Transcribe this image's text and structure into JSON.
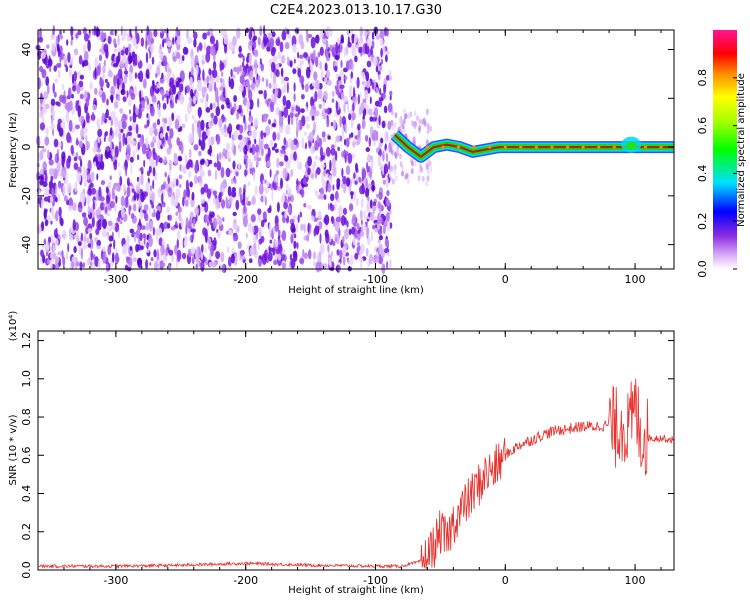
{
  "title": "C2E4.2023.013.10.17.G30",
  "chart_data": [
    {
      "type": "heatmap",
      "name": "spectrogram",
      "xlabel": "Height of straight line (km)",
      "ylabel": "Frequency (Hz)",
      "xlim": [
        -360,
        130
      ],
      "ylim": [
        -50,
        48
      ],
      "x_ticks": [
        -300,
        -200,
        -100,
        0,
        100
      ],
      "y_ticks": [
        -40,
        -20,
        0,
        20,
        40
      ],
      "signal_track": {
        "description_points_x": [
          -85,
          -75,
          -65,
          -55,
          -45,
          -35,
          -25,
          -15,
          -5,
          0,
          50,
          95,
          130
        ],
        "frequency_hz": [
          5,
          0,
          -4,
          0,
          1,
          0,
          -2,
          -1,
          0,
          0,
          0,
          0,
          0
        ]
      }
    },
    {
      "type": "line",
      "name": "snr",
      "xlabel": "Height of straight line (km)",
      "ylabel": "SNR (10 * v/v)",
      "y_multiplier": "(x10⁴)",
      "xlim": [
        -360,
        130
      ],
      "ylim": [
        0,
        1.25
      ],
      "x_ticks": [
        -300,
        -200,
        -100,
        0,
        100
      ],
      "y_ticks": [
        0.0,
        0.2,
        0.4,
        0.6,
        0.8,
        1.0,
        1.2
      ],
      "series": [
        {
          "color": "#e8302c",
          "x": [
            -360,
            -300,
            -250,
            -200,
            -150,
            -100,
            -80,
            -62,
            -55,
            -50,
            -45,
            -40,
            -35,
            -30,
            -25,
            -20,
            -15,
            -10,
            -5,
            0,
            10,
            20,
            30,
            40,
            50,
            60,
            70,
            80,
            85,
            90,
            95,
            100,
            105,
            110,
            120,
            130
          ],
          "y": [
            0.02,
            0.02,
            0.025,
            0.035,
            0.025,
            0.02,
            0.02,
            0.05,
            0.12,
            0.2,
            0.15,
            0.25,
            0.3,
            0.35,
            0.4,
            0.45,
            0.5,
            0.52,
            0.55,
            0.6,
            0.65,
            0.68,
            0.71,
            0.73,
            0.74,
            0.75,
            0.75,
            0.76,
            0.74,
            0.78,
            0.72,
            0.85,
            0.7,
            0.69,
            0.69,
            0.68
          ]
        }
      ]
    },
    {
      "type": "colorbar",
      "name": "amplitude-scale",
      "label": "Normalized spectral amplitude",
      "range": [
        0,
        1
      ],
      "ticks": [
        0.0,
        0.2,
        0.4,
        0.6,
        0.8
      ]
    }
  ]
}
